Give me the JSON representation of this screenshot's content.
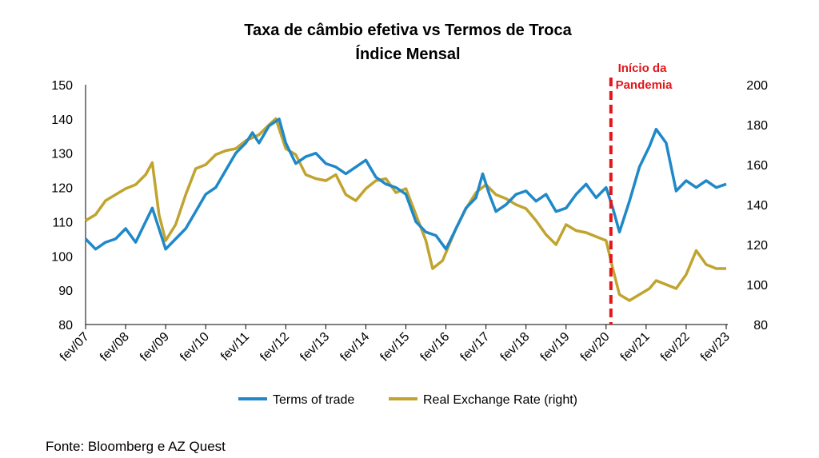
{
  "chart_data": {
    "type": "line",
    "title": "Taxa de câmbio efetiva vs Termos de Troca",
    "subtitle": "Índice Mensal",
    "x_labels": [
      "fev/07",
      "fev/08",
      "fev/09",
      "fev/10",
      "fev/11",
      "fev/12",
      "fev/13",
      "fev/14",
      "fev/15",
      "fev/16",
      "fev/17",
      "fev/18",
      "fev/19",
      "fev/20",
      "fev/21",
      "fev/22",
      "fev/23"
    ],
    "y_left": {
      "min": 80,
      "max": 150,
      "ticks": [
        80,
        90,
        100,
        110,
        120,
        130,
        140,
        150
      ]
    },
    "y_right": {
      "min": 80,
      "max": 200,
      "ticks": [
        80,
        100,
        120,
        140,
        160,
        180,
        200
      ]
    },
    "series": [
      {
        "name": "Terms of trade",
        "axis": "left",
        "color": "#1f88c8",
        "points": [
          [
            "fev/07",
            105
          ],
          [
            "mai/07",
            102
          ],
          [
            "ago/07",
            104
          ],
          [
            "nov/07",
            105
          ],
          [
            "fev/08",
            108
          ],
          [
            "mai/08",
            104
          ],
          [
            "ago/08",
            110
          ],
          [
            "out/08",
            114
          ],
          [
            "dez/08",
            108
          ],
          [
            "fev/09",
            102
          ],
          [
            "mai/09",
            105
          ],
          [
            "ago/09",
            108
          ],
          [
            "nov/09",
            113
          ],
          [
            "fev/10",
            118
          ],
          [
            "mai/10",
            120
          ],
          [
            "ago/10",
            125
          ],
          [
            "nov/10",
            130
          ],
          [
            "fev/11",
            133
          ],
          [
            "abr/11",
            136
          ],
          [
            "jun/11",
            133
          ],
          [
            "set/11",
            138
          ],
          [
            "dez/11",
            140
          ],
          [
            "fev/12",
            133
          ],
          [
            "mai/12",
            127
          ],
          [
            "ago/12",
            129
          ],
          [
            "nov/12",
            130
          ],
          [
            "fev/13",
            127
          ],
          [
            "mai/13",
            126
          ],
          [
            "ago/13",
            124
          ],
          [
            "nov/13",
            126
          ],
          [
            "fev/14",
            128
          ],
          [
            "mai/14",
            123
          ],
          [
            "ago/14",
            121
          ],
          [
            "nov/14",
            120
          ],
          [
            "fev/15",
            118
          ],
          [
            "mai/15",
            110
          ],
          [
            "ago/15",
            107
          ],
          [
            "nov/15",
            106
          ],
          [
            "fev/16",
            102
          ],
          [
            "mai/16",
            108
          ],
          [
            "ago/16",
            114
          ],
          [
            "nov/16",
            117
          ],
          [
            "jan/17",
            124
          ],
          [
            "mar/17",
            118
          ],
          [
            "mai/17",
            113
          ],
          [
            "ago/17",
            115
          ],
          [
            "nov/17",
            118
          ],
          [
            "fev/18",
            119
          ],
          [
            "mai/18",
            116
          ],
          [
            "ago/18",
            118
          ],
          [
            "nov/18",
            113
          ],
          [
            "fev/19",
            114
          ],
          [
            "mai/19",
            118
          ],
          [
            "ago/19",
            121
          ],
          [
            "nov/19",
            117
          ],
          [
            "fev/20",
            120
          ],
          [
            "abr/20",
            114
          ],
          [
            "jun/20",
            107
          ],
          [
            "set/20",
            116
          ],
          [
            "dez/20",
            126
          ],
          [
            "mar/21",
            132
          ],
          [
            "mai/21",
            137
          ],
          [
            "ago/21",
            133
          ],
          [
            "nov/21",
            119
          ],
          [
            "fev/22",
            122
          ],
          [
            "mai/22",
            120
          ],
          [
            "ago/22",
            122
          ],
          [
            "nov/22",
            120
          ],
          [
            "fev/23",
            121
          ]
        ]
      },
      {
        "name": "Real Exchange Rate (right)",
        "axis": "right",
        "color": "#c0a42f",
        "points": [
          [
            "fev/07",
            132
          ],
          [
            "mai/07",
            135
          ],
          [
            "ago/07",
            142
          ],
          [
            "nov/07",
            145
          ],
          [
            "fev/08",
            148
          ],
          [
            "mai/08",
            150
          ],
          [
            "ago/08",
            155
          ],
          [
            "out/08",
            161
          ],
          [
            "dez/08",
            135
          ],
          [
            "fev/09",
            122
          ],
          [
            "mai/09",
            130
          ],
          [
            "ago/09",
            145
          ],
          [
            "nov/09",
            158
          ],
          [
            "fev/10",
            160
          ],
          [
            "mai/10",
            165
          ],
          [
            "ago/10",
            167
          ],
          [
            "nov/10",
            168
          ],
          [
            "fev/11",
            172
          ],
          [
            "jun/11",
            175
          ],
          [
            "set/11",
            180
          ],
          [
            "nov/11",
            183
          ],
          [
            "fev/12",
            168
          ],
          [
            "mai/12",
            165
          ],
          [
            "ago/12",
            155
          ],
          [
            "nov/12",
            153
          ],
          [
            "fev/13",
            152
          ],
          [
            "mai/13",
            155
          ],
          [
            "ago/13",
            145
          ],
          [
            "nov/13",
            142
          ],
          [
            "fev/14",
            148
          ],
          [
            "mai/14",
            152
          ],
          [
            "ago/14",
            153
          ],
          [
            "nov/14",
            146
          ],
          [
            "fev/15",
            148
          ],
          [
            "mai/15",
            135
          ],
          [
            "ago/15",
            122
          ],
          [
            "out/15",
            108
          ],
          [
            "jan/16",
            112
          ],
          [
            "mai/16",
            128
          ],
          [
            "ago/16",
            138
          ],
          [
            "nov/16",
            146
          ],
          [
            "fev/17",
            150
          ],
          [
            "mai/17",
            145
          ],
          [
            "ago/17",
            143
          ],
          [
            "nov/17",
            140
          ],
          [
            "fev/18",
            138
          ],
          [
            "mai/18",
            132
          ],
          [
            "ago/18",
            125
          ],
          [
            "nov/18",
            120
          ],
          [
            "fev/19",
            130
          ],
          [
            "mai/19",
            127
          ],
          [
            "ago/19",
            126
          ],
          [
            "nov/19",
            124
          ],
          [
            "fev/20",
            122
          ],
          [
            "abr/20",
            108
          ],
          [
            "jun/20",
            95
          ],
          [
            "set/20",
            92
          ],
          [
            "dez/20",
            95
          ],
          [
            "mar/21",
            98
          ],
          [
            "mai/21",
            102
          ],
          [
            "ago/21",
            100
          ],
          [
            "nov/21",
            98
          ],
          [
            "fev/22",
            105
          ],
          [
            "mai/22",
            117
          ],
          [
            "ago/22",
            110
          ],
          [
            "nov/22",
            108
          ],
          [
            "fev/23",
            108
          ]
        ]
      }
    ],
    "annotation": {
      "text_line1": "Início da",
      "text_line2": "Pandemia",
      "x": "fev/20",
      "color": "#e3161b"
    },
    "legend": {
      "position": "bottom"
    },
    "grid": false
  },
  "source": "Fonte: Bloomberg e AZ Quest"
}
